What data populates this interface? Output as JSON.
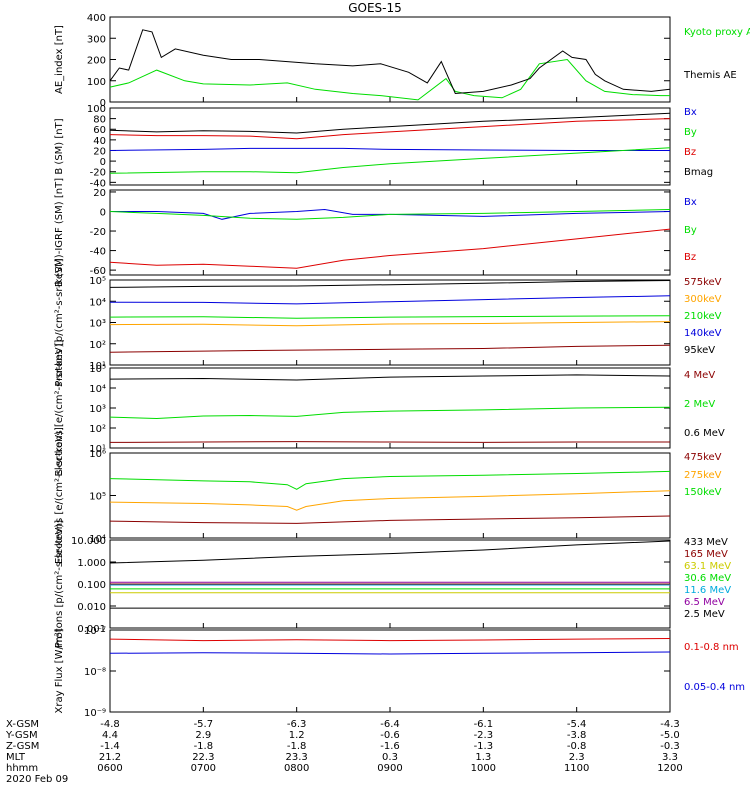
{
  "title": "GOES-15",
  "footer": {
    "row_labels": [
      "X-GSM",
      "Y-GSM",
      "Z-GSM",
      "MLT",
      "hhmm"
    ],
    "date": "2020 Feb 09",
    "rows": [
      [
        "-4.8",
        "-5.7",
        "-6.3",
        "-6.4",
        "-6.1",
        "-5.4",
        "-4.3"
      ],
      [
        "4.4",
        "2.9",
        "1.2",
        "-0.6",
        "-2.3",
        "-3.8",
        "-5.0"
      ],
      [
        "-1.4",
        "-1.8",
        "-1.8",
        "-1.6",
        "-1.3",
        "-0.8",
        "-0.3"
      ],
      [
        "21.2",
        "22.3",
        "23.3",
        "0.3",
        "1.3",
        "2.3",
        "3.3"
      ],
      [
        "0600",
        "0700",
        "0800",
        "0900",
        "1000",
        "1100",
        "1200"
      ]
    ]
  },
  "chart_data": [
    {
      "type": "line",
      "ylabel": "AE_index [nT]",
      "scale": "linear",
      "ylim": [
        0,
        400
      ],
      "ticks": [
        {
          "v": 0,
          "t": "0"
        },
        {
          "v": 100,
          "t": "100"
        },
        {
          "v": 200,
          "t": "200"
        },
        {
          "v": 300,
          "t": "300"
        },
        {
          "v": 400,
          "t": "400"
        }
      ],
      "series": [
        {
          "name": "Kyoto proxy AE",
          "color": "#00dd00",
          "x": [
            6.0,
            6.2,
            6.5,
            6.8,
            7.0,
            7.5,
            7.9,
            8.2,
            8.6,
            8.9,
            9.3,
            9.6,
            9.7,
            9.9,
            10.2,
            10.4,
            10.6,
            10.9,
            11.1,
            11.3,
            11.6,
            11.9,
            12.0
          ],
          "y": [
            70,
            90,
            150,
            100,
            85,
            80,
            90,
            60,
            40,
            30,
            10,
            110,
            50,
            30,
            20,
            60,
            180,
            200,
            100,
            50,
            35,
            30,
            30
          ]
        },
        {
          "name": "Themis AE",
          "color": "#000000",
          "x": [
            6.0,
            6.1,
            6.2,
            6.35,
            6.45,
            6.55,
            6.7,
            7.0,
            7.3,
            7.6,
            7.9,
            8.2,
            8.6,
            8.9,
            9.2,
            9.4,
            9.55,
            9.7,
            10.0,
            10.3,
            10.5,
            10.6,
            10.85,
            10.95,
            11.1,
            11.2,
            11.3,
            11.5,
            11.8,
            12.0
          ],
          "y": [
            100,
            160,
            150,
            340,
            330,
            210,
            250,
            220,
            200,
            200,
            190,
            180,
            170,
            180,
            140,
            90,
            190,
            40,
            50,
            80,
            110,
            160,
            240,
            210,
            200,
            130,
            100,
            60,
            50,
            60
          ]
        }
      ]
    },
    {
      "type": "line",
      "ylabel": "B (SM) [nT]",
      "scale": "linear",
      "ylim": [
        -45,
        100
      ],
      "ticks": [
        {
          "v": -40,
          "t": "-40"
        },
        {
          "v": -20,
          "t": "-20"
        },
        {
          "v": 0,
          "t": "0"
        },
        {
          "v": 20,
          "t": "20"
        },
        {
          "v": 40,
          "t": "40"
        },
        {
          "v": 60,
          "t": "60"
        },
        {
          "v": 80,
          "t": "80"
        },
        {
          "v": 100,
          "t": "100"
        }
      ],
      "series": [
        {
          "name": "Bx",
          "color": "#0000dd",
          "x": [
            6.0,
            7.0,
            7.5,
            8.0,
            8.5,
            9.0,
            10.0,
            11.0,
            12.0
          ],
          "y": [
            20,
            22,
            24,
            24,
            24,
            22,
            21,
            20,
            20
          ]
        },
        {
          "name": "By",
          "color": "#00dd00",
          "x": [
            6.0,
            7.0,
            7.5,
            8.0,
            8.5,
            9.0,
            10.0,
            11.0,
            12.0
          ],
          "y": [
            -23,
            -20,
            -20,
            -22,
            -12,
            -5,
            5,
            15,
            25
          ]
        },
        {
          "name": "Bz",
          "color": "#dd0000",
          "x": [
            6.0,
            6.5,
            7.0,
            7.5,
            8.0,
            8.5,
            9.0,
            10.0,
            11.0,
            12.0
          ],
          "y": [
            50,
            48,
            48,
            47,
            42,
            50,
            55,
            65,
            75,
            80
          ]
        },
        {
          "name": "Bmag",
          "color": "#000000",
          "x": [
            6.0,
            6.5,
            7.0,
            7.5,
            8.0,
            8.5,
            9.0,
            10.0,
            11.0,
            12.0
          ],
          "y": [
            58,
            55,
            57,
            56,
            53,
            60,
            65,
            75,
            82,
            90
          ]
        }
      ]
    },
    {
      "type": "line",
      "ylabel": "B (SM)-IGRF (SM) [nT]",
      "scale": "linear",
      "ylim": [
        -65,
        22
      ],
      "ticks": [
        {
          "v": -60,
          "t": "-60"
        },
        {
          "v": -40,
          "t": "-40"
        },
        {
          "v": -20,
          "t": "-20"
        },
        {
          "v": 0,
          "t": "0"
        },
        {
          "v": 20,
          "t": "20"
        }
      ],
      "series": [
        {
          "name": "Bx",
          "color": "#0000dd",
          "x": [
            6.0,
            6.5,
            7.0,
            7.2,
            7.5,
            8.0,
            8.3,
            8.6,
            9.0,
            10.0,
            11.0,
            12.0
          ],
          "y": [
            0,
            0,
            -2,
            -8,
            -2,
            0,
            2,
            -3,
            -3,
            -5,
            -2,
            0
          ]
        },
        {
          "name": "By",
          "color": "#00dd00",
          "x": [
            6.0,
            6.5,
            7.0,
            7.5,
            8.0,
            8.5,
            9.0,
            10.0,
            11.0,
            12.0
          ],
          "y": [
            0,
            -2,
            -4,
            -7,
            -8,
            -6,
            -3,
            -2,
            0,
            2
          ]
        },
        {
          "name": "Bz",
          "color": "#dd0000",
          "x": [
            6.0,
            6.5,
            7.0,
            7.5,
            8.0,
            8.5,
            9.0,
            10.0,
            11.0,
            12.0
          ],
          "y": [
            -52,
            -55,
            -54,
            -56,
            -58,
            -50,
            -45,
            -38,
            -28,
            -18
          ]
        }
      ]
    },
    {
      "type": "line",
      "ylabel": "Protons [p/(cm²-s-sr-keV)]",
      "scale": "log",
      "ylim": [
        10,
        100000
      ],
      "ticks": [
        {
          "v": 10,
          "t": "10¹"
        },
        {
          "v": 100,
          "t": "10²"
        },
        {
          "v": 1000,
          "t": "10³"
        },
        {
          "v": 10000,
          "t": "10⁴"
        },
        {
          "v": 100000,
          "t": "10⁵"
        }
      ],
      "series": [
        {
          "name": "575keV",
          "color": "#8b0000",
          "x": [
            6.0,
            7.0,
            8.0,
            9.0,
            10.0,
            11.0,
            12.0
          ],
          "y": [
            40,
            45,
            50,
            55,
            60,
            75,
            85
          ]
        },
        {
          "name": "300keV",
          "color": "#ffa500",
          "x": [
            6.0,
            7.0,
            8.0,
            9.0,
            10.0,
            11.0,
            12.0
          ],
          "y": [
            800,
            820,
            700,
            850,
            900,
            1000,
            1100
          ]
        },
        {
          "name": "210keV",
          "color": "#00dd00",
          "x": [
            6.0,
            7.0,
            8.0,
            9.0,
            10.0,
            11.0,
            12.0
          ],
          "y": [
            1800,
            1850,
            1600,
            1800,
            1900,
            2000,
            2100
          ]
        },
        {
          "name": "140keV",
          "color": "#0000dd",
          "x": [
            6.0,
            7.0,
            8.0,
            9.0,
            10.0,
            11.0,
            12.0
          ],
          "y": [
            9000,
            8800,
            7500,
            9500,
            12000,
            15000,
            18000
          ]
        },
        {
          "name": "95keV",
          "color": "#000000",
          "x": [
            6.0,
            7.0,
            8.0,
            9.0,
            10.0,
            11.0,
            12.0
          ],
          "y": [
            45000,
            50000,
            52000,
            60000,
            70000,
            85000,
            95000
          ]
        }
      ]
    },
    {
      "type": "line",
      "ylabel": "Electrons [e/(cm²-s-sr-keV)]",
      "scale": "log",
      "ylim": [
        10,
        100000
      ],
      "ticks": [
        {
          "v": 10,
          "t": "10¹"
        },
        {
          "v": 100,
          "t": "10²"
        },
        {
          "v": 1000,
          "t": "10³"
        },
        {
          "v": 10000,
          "t": "10⁴"
        },
        {
          "v": 100000,
          "t": "10⁵"
        }
      ],
      "series": [
        {
          "name": "4 MeV",
          "color": "#8b0000",
          "x": [
            6.0,
            7.0,
            8.0,
            9.0,
            10.0,
            11.0,
            12.0
          ],
          "y": [
            19,
            20,
            21,
            20,
            19,
            20,
            20
          ]
        },
        {
          "name": "2 MeV",
          "color": "#00dd00",
          "x": [
            6.0,
            6.5,
            7.0,
            7.5,
            8.0,
            8.5,
            9.0,
            10.0,
            11.0,
            12.0
          ],
          "y": [
            350,
            300,
            400,
            420,
            380,
            600,
            700,
            800,
            1000,
            1100
          ]
        },
        {
          "name": "0.6 MeV",
          "color": "#000000",
          "x": [
            6.0,
            7.0,
            8.0,
            9.0,
            10.0,
            11.0,
            12.0
          ],
          "y": [
            28000,
            30000,
            25000,
            35000,
            40000,
            45000,
            40000
          ]
        }
      ]
    },
    {
      "type": "line",
      "ylabel": "Electrons [e/(cm²-s-sr-keV)]",
      "scale": "log",
      "ylim": [
        10000,
        1000000
      ],
      "ticks": [
        {
          "v": 10000,
          "t": "10⁴"
        },
        {
          "v": 100000,
          "t": "10⁵"
        },
        {
          "v": 1000000,
          "t": "10⁶"
        }
      ],
      "series": [
        {
          "name": "475keV",
          "color": "#8b0000",
          "x": [
            6.0,
            7.0,
            8.0,
            9.0,
            10.0,
            11.0,
            12.0
          ],
          "y": [
            25000,
            23000,
            22000,
            26000,
            28000,
            30000,
            33000
          ]
        },
        {
          "name": "275keV",
          "color": "#ffa500",
          "x": [
            6.0,
            7.0,
            7.5,
            7.9,
            8.0,
            8.1,
            8.5,
            9.0,
            10.0,
            11.0,
            12.0
          ],
          "y": [
            70000,
            65000,
            60000,
            55000,
            45000,
            55000,
            75000,
            85000,
            95000,
            110000,
            130000
          ]
        },
        {
          "name": "150keV",
          "color": "#00dd00",
          "x": [
            6.0,
            7.0,
            7.5,
            7.9,
            8.0,
            8.1,
            8.5,
            9.0,
            10.0,
            11.0,
            12.0
          ],
          "y": [
            250000,
            220000,
            210000,
            180000,
            140000,
            190000,
            250000,
            280000,
            300000,
            330000,
            370000
          ]
        }
      ]
    },
    {
      "type": "line",
      "ylabel": "Protons [p/(cm²-s-sr-keV)]",
      "scale": "log",
      "ylim": [
        0.001,
        10
      ],
      "ticks": [
        {
          "v": 0.001,
          "t": "0.001"
        },
        {
          "v": 0.01,
          "t": "0.010"
        },
        {
          "v": 0.1,
          "t": "0.100"
        },
        {
          "v": 1,
          "t": "1.000"
        },
        {
          "v": 10,
          "t": "10.000"
        }
      ],
      "series": [
        {
          "name": "433 MeV",
          "color": "#000000",
          "x": [
            6.0,
            7.0,
            8.0,
            9.0,
            10.0,
            11.0,
            12.0
          ],
          "y": [
            0.9,
            1.2,
            1.8,
            2.4,
            3.5,
            6.0,
            9.0
          ]
        },
        {
          "name": "165 MeV",
          "color": "#8b0000",
          "x": [
            6.0,
            12.0
          ],
          "y": [
            0.1,
            0.1
          ]
        },
        {
          "name": "63.1 MeV",
          "color": "#cccc00",
          "x": [
            6.0,
            12.0
          ],
          "y": [
            0.04,
            0.04
          ]
        },
        {
          "name": "30.6 MeV",
          "color": "#00dd00",
          "x": [
            6.0,
            12.0
          ],
          "y": [
            0.06,
            0.06
          ]
        },
        {
          "name": "11.6 MeV",
          "color": "#00aadd",
          "x": [
            6.0,
            12.0
          ],
          "y": [
            0.09,
            0.09
          ]
        },
        {
          "name": "6.5 MeV",
          "color": "#9000a0",
          "x": [
            6.0,
            12.0
          ],
          "y": [
            0.12,
            0.12
          ]
        },
        {
          "name": "2.5 MeV",
          "color": "#000000",
          "x": [
            6.0,
            12.0
          ],
          "y": [
            0.008,
            0.008
          ]
        }
      ]
    },
    {
      "type": "line",
      "ylabel": "Xray Flux [W/m²]",
      "scale": "log",
      "ylim": [
        1e-09,
        1e-07
      ],
      "ticks": [
        {
          "v": 1e-09,
          "t": "10⁻⁹"
        },
        {
          "v": 1e-08,
          "t": "10⁻⁸"
        },
        {
          "v": 1e-07,
          "t": "10⁻⁷"
        }
      ],
      "series": [
        {
          "name": "0.1-0.8 nm",
          "color": "#dd0000",
          "x": [
            6.0,
            7.0,
            8.0,
            9.0,
            10.0,
            11.0,
            12.0
          ],
          "y": [
            6e-08,
            5.5e-08,
            5.8e-08,
            5.5e-08,
            5.7e-08,
            6e-08,
            6.2e-08
          ]
        },
        {
          "name": "0.05-0.4 nm",
          "color": "#0000dd",
          "x": [
            6.0,
            7.0,
            8.0,
            9.0,
            10.0,
            11.0,
            12.0
          ],
          "y": [
            2.7e-08,
            2.8e-08,
            2.7e-08,
            2.6e-08,
            2.7e-08,
            2.8e-08,
            2.9e-08
          ]
        }
      ]
    }
  ]
}
